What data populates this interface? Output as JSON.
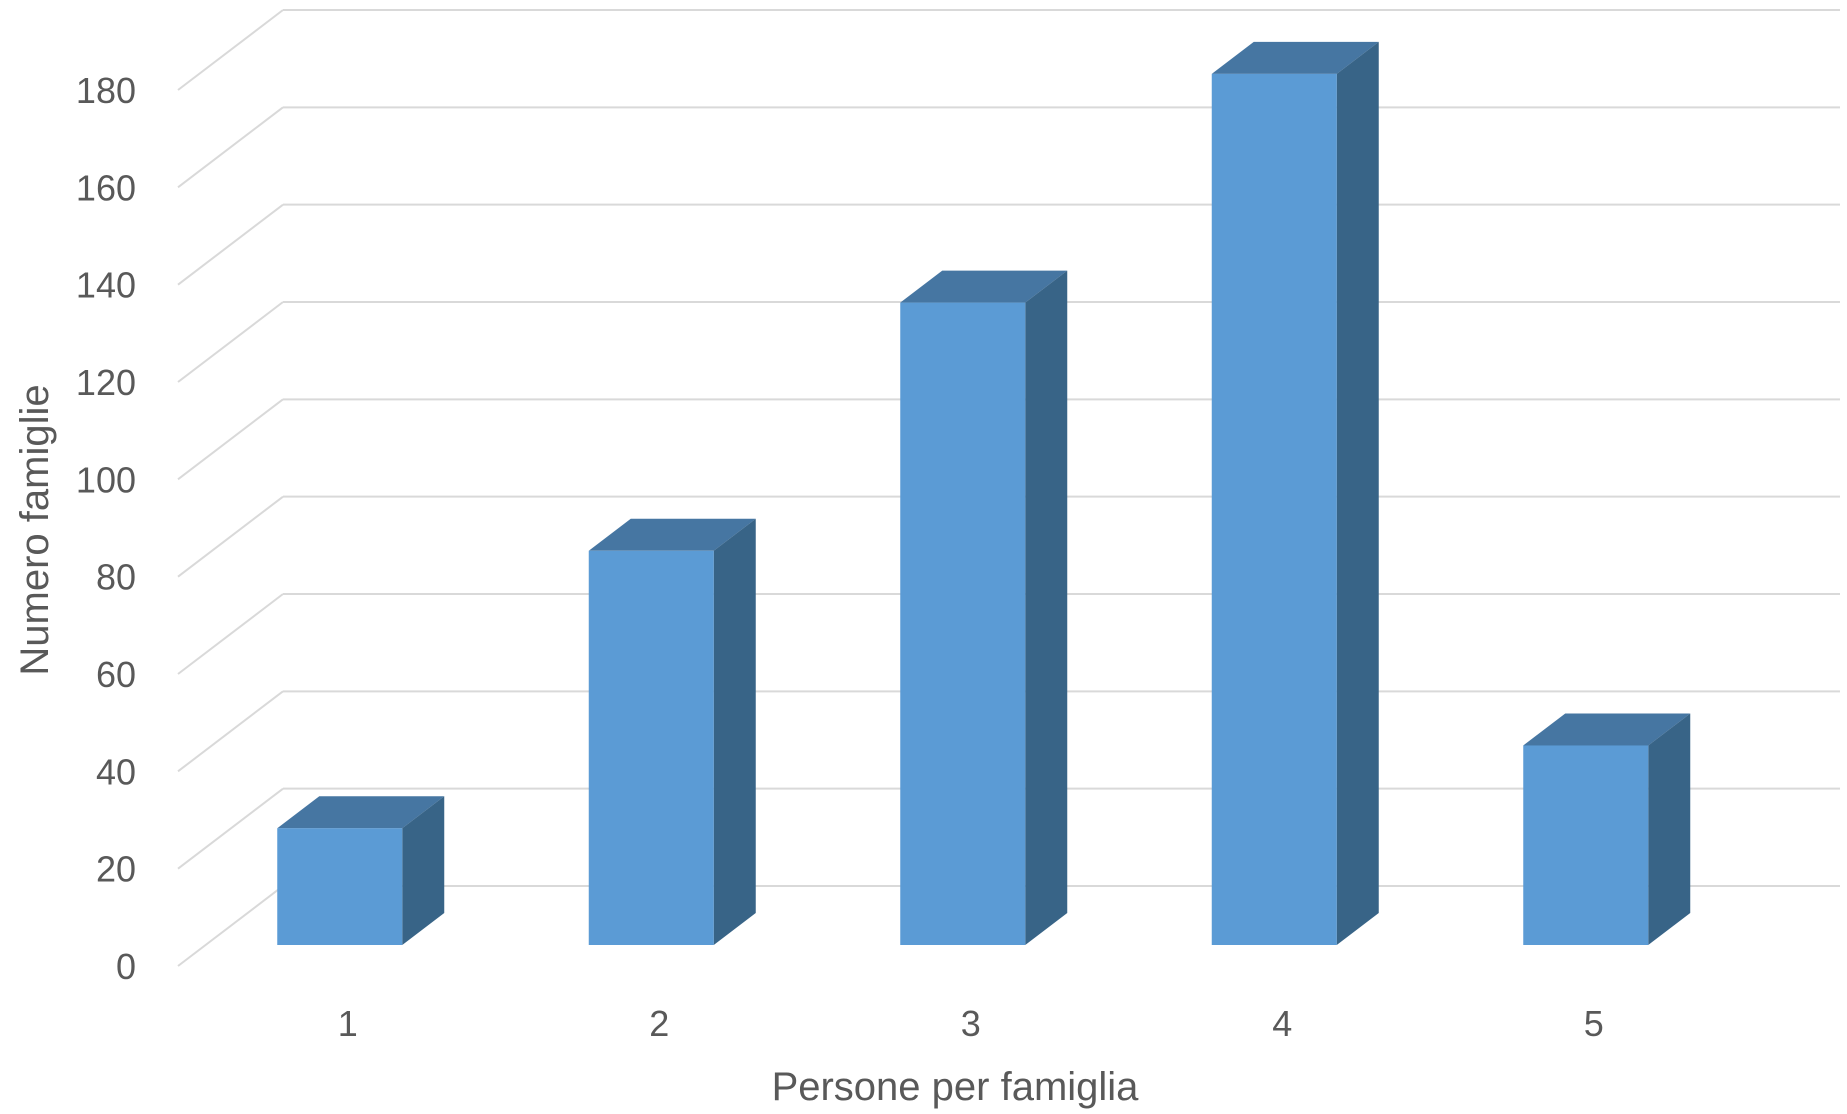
{
  "chart_data": {
    "type": "bar",
    "style": "3d-column",
    "categories": [
      "1",
      "2",
      "3",
      "4",
      "5"
    ],
    "values": [
      24,
      81,
      132,
      179,
      41
    ],
    "xlabel": "Persone per famiglia",
    "ylabel": "Numero famiglie",
    "ylim": [
      0,
      180
    ],
    "yticks": [
      0,
      20,
      40,
      60,
      80,
      100,
      120,
      140,
      160,
      180
    ],
    "grid": true,
    "legend": "none",
    "colors": {
      "bar_front": "#5b9bd5",
      "bar_side": "#386487",
      "bar_top": "#4676a2",
      "grid": "#d9d9d9",
      "text": "#595959"
    }
  }
}
